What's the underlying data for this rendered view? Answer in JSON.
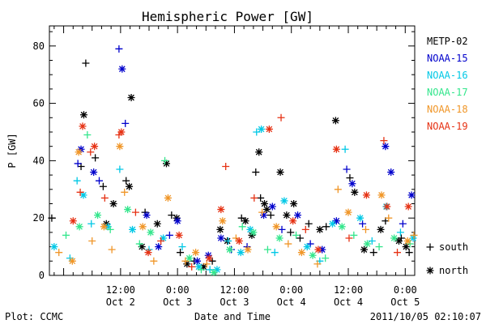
{
  "chart_data": {
    "type": "scatter",
    "title": "Hemispheric Power [GW]",
    "ylabel": "P [GW]",
    "xlabel": "Date and Time",
    "ylim": [
      0,
      87
    ],
    "xlim": [
      "2011-10-01 21:00",
      "2011-10-05 02:00"
    ],
    "yticks": [
      0,
      20,
      40,
      60,
      80
    ],
    "x_ticks": [
      {
        "time": "2011-10-02 12:00",
        "line1": "12:00",
        "line2": "Oct 2"
      },
      {
        "time": "2011-10-03 00:00",
        "line1": "0:00",
        "line2": "Oct 3"
      },
      {
        "time": "2011-10-03 12:00",
        "line1": "12:00",
        "line2": "Oct 3"
      },
      {
        "time": "2011-10-04 00:00",
        "line1": "0:00",
        "line2": "Oct 4"
      },
      {
        "time": "2011-10-04 12:00",
        "line1": "12:00",
        "line2": "Oct 4"
      },
      {
        "time": "2011-10-05 00:00",
        "line1": "0:00",
        "line2": "Oct 5"
      }
    ],
    "marker_legend": [
      {
        "symbol": "+",
        "label": "south"
      },
      {
        "symbol": "*",
        "label": "north"
      }
    ],
    "series": [
      {
        "name": "METP-02",
        "color": "#000000",
        "points": [
          [
            "2011-10-01 21:30",
            20,
            "+"
          ],
          [
            "2011-10-02 03:40",
            38,
            "+"
          ],
          [
            "2011-10-02 04:15",
            56,
            "*"
          ],
          [
            "2011-10-02 04:40",
            74,
            "+"
          ],
          [
            "2011-10-02 06:40",
            41,
            "+"
          ],
          [
            "2011-10-02 08:20",
            31,
            "+"
          ],
          [
            "2011-10-02 09:00",
            18,
            "*"
          ],
          [
            "2011-10-02 10:30",
            25,
            "*"
          ],
          [
            "2011-10-02 13:10",
            33,
            "+"
          ],
          [
            "2011-10-02 13:50",
            31,
            "*"
          ],
          [
            "2011-10-02 14:15",
            62,
            "*"
          ],
          [
            "2011-10-02 16:30",
            10,
            "*"
          ],
          [
            "2011-10-02 17:10",
            22,
            "+"
          ],
          [
            "2011-10-02 19:45",
            18,
            "*"
          ],
          [
            "2011-10-02 21:40",
            39,
            "*"
          ],
          [
            "2011-10-02 22:45",
            21,
            "+"
          ],
          [
            "2011-10-02 23:50",
            20,
            "*"
          ],
          [
            "2011-10-03 00:35",
            8,
            "+"
          ],
          [
            "2011-10-03 02:00",
            4,
            "*"
          ],
          [
            "2011-10-03 03:30",
            5,
            "+"
          ],
          [
            "2011-10-03 05:30",
            3,
            "*"
          ],
          [
            "2011-10-03 07:20",
            5,
            "+"
          ],
          [
            "2011-10-03 09:00",
            16,
            "*"
          ],
          [
            "2011-10-03 10:30",
            12,
            "*"
          ],
          [
            "2011-10-03 13:30",
            20,
            "+"
          ],
          [
            "2011-10-03 14:20",
            19,
            "*"
          ],
          [
            "2011-10-03 15:40",
            14,
            "*"
          ],
          [
            "2011-10-03 16:30",
            36,
            "+"
          ],
          [
            "2011-10-03 17:10",
            43,
            "*"
          ],
          [
            "2011-10-03 17:30",
            27,
            "+"
          ],
          [
            "2011-10-03 18:20",
            25,
            "*"
          ],
          [
            "2011-10-03 18:50",
            23,
            "*"
          ],
          [
            "2011-10-03 19:40",
            21,
            "+"
          ],
          [
            "2011-10-03 21:40",
            36,
            "*"
          ],
          [
            "2011-10-03 23:00",
            21,
            "*"
          ],
          [
            "2011-10-03 23:50",
            15,
            "+"
          ],
          [
            "2011-10-04 00:30",
            25,
            "*"
          ],
          [
            "2011-10-04 01:50",
            13,
            "+"
          ],
          [
            "2011-10-04 03:40",
            18,
            "+"
          ],
          [
            "2011-10-04 06:00",
            16,
            "*"
          ],
          [
            "2011-10-04 07:20",
            17,
            "+"
          ],
          [
            "2011-10-04 09:20",
            54,
            "*"
          ],
          [
            "2011-10-04 12:20",
            34,
            "+"
          ],
          [
            "2011-10-04 13:20",
            29,
            "*"
          ],
          [
            "2011-10-04 15:20",
            9,
            "*"
          ],
          [
            "2011-10-04 17:20",
            8,
            "+"
          ],
          [
            "2011-10-04 18:50",
            16,
            "*"
          ],
          [
            "2011-10-04 19:50",
            19,
            "+"
          ],
          [
            "2011-10-04 22:40",
            12,
            "*"
          ],
          [
            "2011-10-04 23:10",
            13,
            "+"
          ],
          [
            "2011-10-05 00:10",
            10,
            "*"
          ],
          [
            "2011-10-05 00:50",
            8,
            "+"
          ]
        ]
      },
      {
        "name": "NOAA-15",
        "color": "#0000cc",
        "points": [
          [
            "2011-10-02 03:00",
            39,
            "+"
          ],
          [
            "2011-10-02 03:40",
            44,
            "*"
          ],
          [
            "2011-10-02 06:20",
            36,
            "*"
          ],
          [
            "2011-10-02 07:30",
            33,
            "+"
          ],
          [
            "2011-10-02 11:40",
            79,
            "+"
          ],
          [
            "2011-10-02 12:20",
            72,
            "*"
          ],
          [
            "2011-10-02 13:00",
            53,
            "+"
          ],
          [
            "2011-10-02 17:30",
            21,
            "*"
          ],
          [
            "2011-10-02 20:00",
            10,
            "*"
          ],
          [
            "2011-10-02 22:20",
            14,
            "+"
          ],
          [
            "2011-10-03 00:00",
            19,
            "*"
          ],
          [
            "2011-10-03 04:10",
            5,
            "*"
          ],
          [
            "2011-10-03 06:30",
            7,
            "*"
          ],
          [
            "2011-10-03 09:10",
            13,
            "*"
          ],
          [
            "2011-10-03 11:20",
            9,
            "+"
          ],
          [
            "2011-10-03 14:40",
            10,
            "+"
          ],
          [
            "2011-10-03 18:10",
            21,
            "*"
          ],
          [
            "2011-10-03 20:00",
            24,
            "*"
          ],
          [
            "2011-10-03 22:00",
            16,
            "+"
          ],
          [
            "2011-10-04 01:20",
            21,
            "*"
          ],
          [
            "2011-10-04 04:00",
            11,
            "+"
          ],
          [
            "2011-10-04 06:30",
            9,
            "*"
          ],
          [
            "2011-10-04 09:30",
            19,
            "*"
          ],
          [
            "2011-10-04 11:40",
            37,
            "+"
          ],
          [
            "2011-10-04 12:50",
            32,
            "*"
          ],
          [
            "2011-10-04 15:00",
            18,
            "+"
          ],
          [
            "2011-10-04 19:50",
            45,
            "*"
          ],
          [
            "2011-10-04 21:00",
            36,
            "*"
          ],
          [
            "2011-10-04 23:30",
            18,
            "+"
          ],
          [
            "2011-10-05 01:20",
            28,
            "*"
          ]
        ]
      },
      {
        "name": "NOAA-16",
        "color": "#00c8e6",
        "points": [
          [
            "2011-10-01 22:00",
            10,
            "*"
          ],
          [
            "2011-10-02 01:20",
            6,
            "+"
          ],
          [
            "2011-10-02 02:50",
            33,
            "+"
          ],
          [
            "2011-10-02 04:10",
            28,
            "*"
          ],
          [
            "2011-10-02 05:50",
            18,
            "+"
          ],
          [
            "2011-10-02 09:20",
            17,
            "*"
          ],
          [
            "2011-10-02 11:50",
            37,
            "+"
          ],
          [
            "2011-10-02 14:30",
            16,
            "*"
          ],
          [
            "2011-10-02 18:00",
            9,
            "+"
          ],
          [
            "2011-10-02 21:00",
            13,
            "*"
          ],
          [
            "2011-10-03 01:00",
            10,
            "+"
          ],
          [
            "2011-10-03 04:30",
            3,
            "*"
          ],
          [
            "2011-10-03 06:50",
            2,
            "+"
          ],
          [
            "2011-10-03 08:20",
            2,
            "*"
          ],
          [
            "2011-10-03 10:40",
            12,
            "+"
          ],
          [
            "2011-10-03 13:20",
            8,
            "*"
          ],
          [
            "2011-10-03 15:20",
            16,
            "*"
          ],
          [
            "2011-10-03 16:40",
            50,
            "+"
          ],
          [
            "2011-10-03 17:40",
            51,
            "*"
          ],
          [
            "2011-10-03 20:30",
            8,
            "+"
          ],
          [
            "2011-10-03 22:30",
            26,
            "*"
          ],
          [
            "2011-10-04 03:20",
            10,
            "*"
          ],
          [
            "2011-10-04 06:00",
            5,
            "+"
          ],
          [
            "2011-10-04 08:40",
            18,
            "*"
          ],
          [
            "2011-10-04 11:20",
            44,
            "+"
          ],
          [
            "2011-10-04 14:30",
            20,
            "*"
          ],
          [
            "2011-10-04 17:00",
            12,
            "+"
          ],
          [
            "2011-10-04 20:00",
            24,
            "*"
          ],
          [
            "2011-10-04 23:00",
            15,
            "+"
          ],
          [
            "2011-10-05 01:40",
            13,
            "*"
          ]
        ]
      },
      {
        "name": "NOAA-17",
        "color": "#33e68c",
        "points": [
          [
            "2011-10-02 00:30",
            14,
            "+"
          ],
          [
            "2011-10-02 03:20",
            17,
            "*"
          ],
          [
            "2011-10-02 05:00",
            49,
            "+"
          ],
          [
            "2011-10-02 07:10",
            21,
            "*"
          ],
          [
            "2011-10-02 09:50",
            16,
            "+"
          ],
          [
            "2011-10-02 13:30",
            23,
            "*"
          ],
          [
            "2011-10-02 16:00",
            11,
            "+"
          ],
          [
            "2011-10-02 18:20",
            15,
            "*"
          ],
          [
            "2011-10-02 21:20",
            40,
            "+"
          ],
          [
            "2011-10-03 02:30",
            6,
            "*"
          ],
          [
            "2011-10-03 05:00",
            2,
            "+"
          ],
          [
            "2011-10-03 07:40",
            1,
            "*"
          ],
          [
            "2011-10-03 11:00",
            9,
            "*"
          ],
          [
            "2011-10-03 13:40",
            17,
            "+"
          ],
          [
            "2011-10-03 16:00",
            15,
            "*"
          ],
          [
            "2011-10-03 19:00",
            9,
            "+"
          ],
          [
            "2011-10-03 21:30",
            13,
            "*"
          ],
          [
            "2011-10-04 01:00",
            14,
            "+"
          ],
          [
            "2011-10-04 04:30",
            7,
            "*"
          ],
          [
            "2011-10-04 07:10",
            6,
            "+"
          ],
          [
            "2011-10-04 10:40",
            17,
            "*"
          ],
          [
            "2011-10-04 13:10",
            14,
            "+"
          ],
          [
            "2011-10-04 16:00",
            11,
            "*"
          ],
          [
            "2011-10-04 18:30",
            10,
            "+"
          ],
          [
            "2011-10-04 21:40",
            13,
            "*"
          ],
          [
            "2011-10-05 01:00",
            11,
            "+"
          ]
        ]
      },
      {
        "name": "NOAA-18",
        "color": "#f09628",
        "points": [
          [
            "2011-10-01 23:00",
            8,
            "+"
          ],
          [
            "2011-10-02 01:50",
            5,
            "*"
          ],
          [
            "2011-10-02 03:10",
            43,
            "*"
          ],
          [
            "2011-10-02 06:00",
            12,
            "+"
          ],
          [
            "2011-10-02 08:30",
            17,
            "*"
          ],
          [
            "2011-10-02 10:10",
            9,
            "+"
          ],
          [
            "2011-10-02 11:50",
            45,
            "*"
          ],
          [
            "2011-10-02 12:50",
            29,
            "+"
          ],
          [
            "2011-10-02 16:40",
            17,
            "*"
          ],
          [
            "2011-10-02 19:00",
            5,
            "+"
          ],
          [
            "2011-10-02 22:00",
            27,
            "*"
          ],
          [
            "2011-10-03 01:40",
            5,
            "+"
          ],
          [
            "2011-10-03 03:50",
            8,
            "*"
          ],
          [
            "2011-10-03 06:10",
            4,
            "+"
          ],
          [
            "2011-10-03 09:30",
            19,
            "*"
          ],
          [
            "2011-10-03 12:20",
            13,
            "+"
          ],
          [
            "2011-10-03 14:50",
            9,
            "*"
          ],
          [
            "2011-10-03 17:50",
            22,
            "+"
          ],
          [
            "2011-10-03 20:50",
            17,
            "*"
          ],
          [
            "2011-10-03 23:20",
            11,
            "+"
          ],
          [
            "2011-10-04 02:10",
            8,
            "*"
          ],
          [
            "2011-10-04 05:30",
            4,
            "+"
          ],
          [
            "2011-10-04 09:50",
            30,
            "+"
          ],
          [
            "2011-10-04 12:00",
            22,
            "*"
          ],
          [
            "2011-10-04 15:40",
            16,
            "+"
          ],
          [
            "2011-10-04 19:00",
            28,
            "*"
          ],
          [
            "2011-10-04 20:30",
            20,
            "+"
          ],
          [
            "2011-10-05 00:30",
            12,
            "*"
          ],
          [
            "2011-10-05 01:50",
            14,
            "+"
          ]
        ]
      },
      {
        "name": "NOAA-19",
        "color": "#e63214",
        "points": [
          [
            "2011-10-02 02:00",
            19,
            "*"
          ],
          [
            "2011-10-02 03:30",
            29,
            "+"
          ],
          [
            "2011-10-02 04:00",
            52,
            "*"
          ],
          [
            "2011-10-02 05:40",
            43,
            "+"
          ],
          [
            "2011-10-02 06:30",
            45,
            "*"
          ],
          [
            "2011-10-02 08:40",
            27,
            "+"
          ],
          [
            "2011-10-02 11:40",
            49,
            "+"
          ],
          [
            "2011-10-02 12:10",
            50,
            "*"
          ],
          [
            "2011-10-02 15:10",
            22,
            "+"
          ],
          [
            "2011-10-02 17:50",
            8,
            "*"
          ],
          [
            "2011-10-02 20:30",
            12,
            "+"
          ],
          [
            "2011-10-03 00:20",
            14,
            "*"
          ],
          [
            "2011-10-03 03:00",
            3,
            "+"
          ],
          [
            "2011-10-03 06:40",
            6,
            "*"
          ],
          [
            "2011-10-03 09:10",
            23,
            "*"
          ],
          [
            "2011-10-03 10:10",
            38,
            "+"
          ],
          [
            "2011-10-03 13:00",
            12,
            "*"
          ],
          [
            "2011-10-03 16:10",
            27,
            "+"
          ],
          [
            "2011-10-03 19:20",
            51,
            "*"
          ],
          [
            "2011-10-03 21:50",
            55,
            "+"
          ],
          [
            "2011-10-04 00:20",
            19,
            "*"
          ],
          [
            "2011-10-04 03:00",
            16,
            "+"
          ],
          [
            "2011-10-04 05:40",
            9,
            "*"
          ],
          [
            "2011-10-04 09:30",
            44,
            "*"
          ],
          [
            "2011-10-04 12:10",
            13,
            "+"
          ],
          [
            "2011-10-04 15:50",
            28,
            "*"
          ],
          [
            "2011-10-04 19:30",
            47,
            "+"
          ],
          [
            "2011-10-04 20:10",
            24,
            "*"
          ],
          [
            "2011-10-04 22:20",
            8,
            "+"
          ],
          [
            "2011-10-05 00:40",
            24,
            "*"
          ]
        ]
      }
    ]
  },
  "footer": {
    "left": "Plot: CCMC",
    "right": "2011/10/05 02:10:07"
  }
}
